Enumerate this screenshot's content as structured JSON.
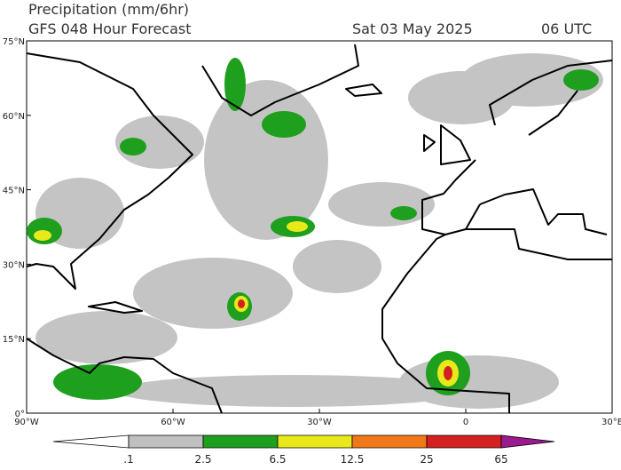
{
  "header": {
    "title": "Precipitation (mm/6hr)",
    "subtitle": "GFS 048 Hour Forecast",
    "date": "Sat 03 May 2025",
    "time": "06 UTC"
  },
  "map": {
    "lat_labels": [
      "75°N",
      "60°N",
      "45°N",
      "30°N",
      "15°N",
      "0°"
    ],
    "lon_labels": [
      "90°W",
      "60°W",
      "30°W",
      "0",
      "30°E"
    ]
  },
  "colorbar": {
    "labels": [
      ".1",
      "2.5",
      "6.5",
      "12.5",
      "25",
      "65"
    ],
    "colors": [
      "#ffffff",
      "#c0c0c0",
      "#1ea01e",
      "#e8e81a",
      "#f07818",
      "#d42020",
      "#9b1a8f"
    ]
  }
}
